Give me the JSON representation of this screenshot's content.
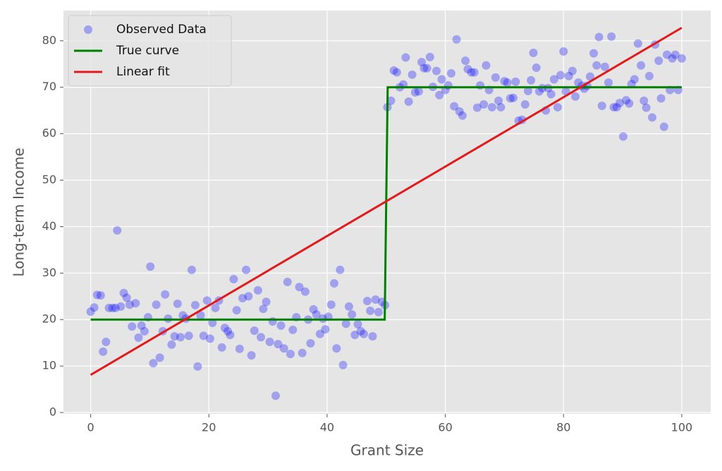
{
  "chart_data": {
    "type": "scatter",
    "xlabel": "Grant Size",
    "ylabel": "Long-term Income",
    "xlim": [
      -4.6,
      104.9
    ],
    "ylim": [
      -0.3,
      86.5
    ],
    "xticks": [
      0,
      20,
      40,
      60,
      80,
      100
    ],
    "yticks": [
      0,
      10,
      20,
      30,
      40,
      50,
      60,
      70,
      80
    ],
    "grid": true,
    "legend": "upper left",
    "series": [
      {
        "name": "Observed Data",
        "type": "scatter",
        "color": "blue",
        "alpha": 0.3,
        "x": [
          0,
          0.6,
          1.1,
          1.7,
          2.1,
          2.6,
          3.1,
          3.7,
          4.2,
          4.5,
          5.1,
          5.6,
          6.1,
          6.6,
          7.0,
          7.6,
          8.1,
          8.6,
          9.1,
          9.7,
          10.1,
          10.6,
          11.1,
          11.7,
          12.2,
          12.6,
          13.1,
          13.7,
          14.2,
          14.7,
          15.2,
          15.6,
          16.1,
          16.6,
          17.1,
          17.7,
          18.1,
          18.6,
          19.1,
          19.7,
          20.2,
          20.6,
          21.1,
          21.7,
          22.2,
          22.7,
          23.2,
          23.6,
          24.2,
          24.7,
          25.2,
          25.7,
          26.3,
          26.7,
          27.2,
          27.7,
          28.3,
          28.8,
          29.2,
          29.7,
          30.3,
          30.8,
          31.3,
          31.7,
          32.2,
          32.7,
          33.3,
          33.8,
          34.2,
          34.8,
          35.3,
          35.8,
          36.3,
          36.8,
          37.2,
          37.7,
          38.2,
          38.8,
          39.3,
          39.7,
          40.2,
          40.7,
          41.2,
          41.6,
          42.2,
          42.7,
          43.2,
          43.7,
          44.2,
          44.7,
          45.2,
          45.7,
          46.2,
          46.8,
          47.3,
          47.7,
          48.2,
          48.7,
          49.3,
          49.8,
          50.2,
          50.8,
          51.3,
          51.8,
          52.3,
          52.9,
          53.3,
          53.8,
          54.4,
          54.9,
          55.5,
          56.0,
          56.4,
          56.9,
          57.4,
          57.9,
          58.5,
          59.0,
          59.4,
          60.0,
          60.5,
          61.0,
          61.5,
          61.9,
          62.4,
          62.9,
          63.4,
          63.8,
          64.4,
          64.9,
          65.4,
          65.9,
          66.5,
          66.9,
          67.4,
          67.9,
          68.5,
          69.0,
          69.4,
          70.0,
          70.5,
          71.0,
          71.5,
          71.9,
          72.4,
          73.0,
          73.5,
          74.0,
          74.5,
          74.9,
          75.4,
          75.9,
          76.4,
          77.0,
          77.4,
          77.9,
          78.4,
          79.0,
          79.5,
          80.0,
          80.4,
          80.9,
          81.5,
          82.0,
          82.5,
          83.1,
          83.5,
          84.0,
          84.5,
          85.1,
          85.6,
          86.0,
          86.5,
          87.0,
          87.6,
          88.1,
          88.5,
          89.0,
          89.5,
          90.1,
          90.6,
          91.1,
          91.5,
          92.0,
          92.6,
          93.1,
          93.6,
          94.0,
          94.5,
          95.0,
          95.5,
          96.1,
          96.5,
          97.0,
          97.5,
          98.0,
          98.4,
          98.9,
          99.4,
          100.0
        ],
        "values": [
          21.7,
          22.6,
          25.3,
          25.2,
          13.1,
          15.2,
          22.5,
          22.5,
          22.5,
          39.2,
          22.8,
          25.7,
          24.7,
          23.2,
          18.5,
          23.5,
          16.1,
          18.7,
          17.5,
          20.5,
          31.4,
          10.6,
          23.2,
          11.8,
          17.5,
          25.4,
          20.2,
          14.6,
          16.4,
          23.4,
          16.2,
          20.9,
          20.2,
          16.5,
          30.7,
          23.1,
          9.9,
          20.9,
          16.5,
          24.1,
          15.9,
          19.3,
          22.5,
          24.1,
          14.0,
          18.2,
          17.5,
          16.7,
          28.7,
          22.0,
          13.7,
          24.6,
          30.7,
          25.0,
          12.3,
          17.6,
          26.3,
          16.2,
          22.3,
          23.8,
          15.2,
          19.6,
          3.6,
          14.7,
          18.7,
          13.8,
          28.1,
          12.6,
          17.8,
          20.5,
          27.0,
          12.8,
          26.0,
          20.0,
          14.9,
          22.2,
          21.1,
          16.9,
          20.2,
          17.9,
          20.6,
          23.2,
          27.8,
          13.8,
          30.7,
          10.2,
          19.1,
          22.8,
          21.1,
          16.7,
          19.0,
          17.5,
          16.9,
          24.0,
          21.9,
          16.4,
          24.3,
          21.6,
          23.8,
          23.1,
          65.7,
          67.1,
          73.6,
          73.2,
          70.0,
          70.6,
          76.4,
          66.9,
          72.7,
          68.9,
          69.1,
          75.4,
          74.1,
          74.1,
          76.5,
          70.1,
          73.5,
          68.3,
          71.7,
          69.4,
          70.4,
          73.0,
          65.9,
          80.3,
          64.8,
          63.9,
          75.7,
          73.9,
          73.2,
          73.2,
          65.6,
          70.4,
          66.3,
          74.7,
          69.4,
          65.7,
          72.1,
          67.1,
          65.7,
          71.3,
          71.0,
          67.6,
          67.7,
          71.2,
          62.8,
          63.0,
          66.3,
          69.2,
          71.5,
          77.4,
          74.2,
          69.1,
          69.8,
          65.0,
          69.8,
          68.5,
          71.7,
          65.7,
          72.6,
          77.7,
          69.1,
          72.4,
          73.5,
          68.0,
          71.0,
          70.3,
          69.7,
          70.3,
          72.3,
          77.3,
          74.7,
          80.8,
          66.0,
          74.4,
          71.0,
          80.9,
          65.7,
          65.7,
          66.6,
          59.4,
          67.2,
          66.5,
          70.7,
          71.7,
          79.4,
          74.7,
          67.1,
          65.6,
          72.4,
          63.5,
          79.2,
          75.7,
          67.6,
          61.5,
          77.0,
          69.4,
          76.2,
          77.0,
          69.4,
          76.2
        ]
      },
      {
        "name": "True curve",
        "type": "line",
        "color": "green",
        "x": [
          0,
          49.75,
          50.25,
          100
        ],
        "values": [
          20,
          20,
          70,
          70
        ]
      },
      {
        "name": "Linear fit",
        "type": "line",
        "color": "#e31a1c",
        "x": [
          0,
          100
        ],
        "values": [
          8.1,
          82.8
        ]
      }
    ]
  }
}
